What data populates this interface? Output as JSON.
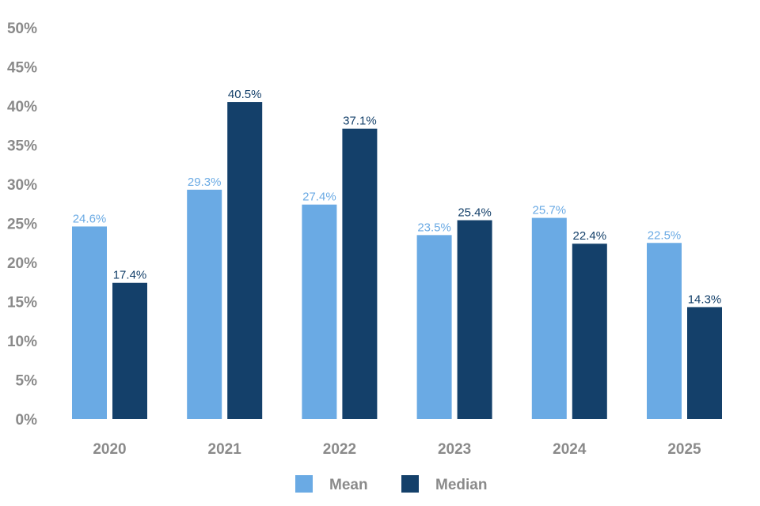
{
  "chart_data": {
    "type": "bar",
    "categories": [
      "2020",
      "2021",
      "2022",
      "2023",
      "2024",
      "2025"
    ],
    "series": [
      {
        "name": "Mean",
        "color": "#6aaae4",
        "label_color": "#6aaae4",
        "values": [
          24.6,
          29.3,
          27.4,
          23.5,
          25.7,
          22.5
        ],
        "labels": [
          "24.6%",
          "29.3%",
          "27.4%",
          "23.5%",
          "25.7%",
          "22.5%"
        ]
      },
      {
        "name": "Median",
        "color": "#14406a",
        "label_color": "#14406a",
        "values": [
          17.4,
          40.5,
          37.1,
          25.4,
          22.4,
          14.3
        ],
        "labels": [
          "17.4%",
          "40.5%",
          "37.1%",
          "25.4%",
          "22.4%",
          "14.3%"
        ]
      }
    ],
    "ylim": [
      0,
      50
    ],
    "yticks": [
      "0%",
      "5%",
      "10%",
      "15%",
      "20%",
      "25%",
      "30%",
      "35%",
      "40%",
      "45%",
      "50%"
    ],
    "grid": false,
    "legend_position": "bottom-center"
  }
}
